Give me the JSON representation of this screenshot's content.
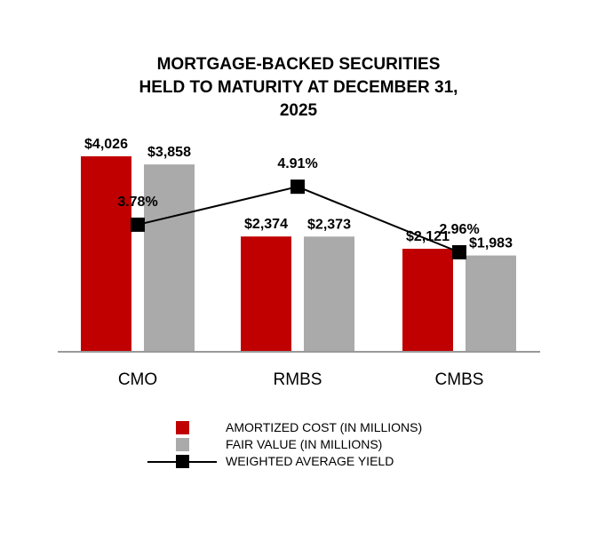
{
  "chart_data": {
    "type": "bar",
    "title_lines": [
      "MORTGAGE-BACKED SECURITIES",
      "HELD TO MATURITY AT DECEMBER 31,",
      "2025"
    ],
    "categories": [
      "CMO",
      "RMBS",
      "CMBS"
    ],
    "ylim": [
      0,
      4500
    ],
    "series": [
      {
        "name": "AMORTIZED COST (IN MILLIONS)",
        "type": "bar",
        "color": "#c00000",
        "values": [
          4026,
          2374,
          2121
        ],
        "labels": [
          "$4,026",
          "$2,374",
          "$2,121"
        ]
      },
      {
        "name": "FAIR VALUE (IN MILLIONS)",
        "type": "bar",
        "color": "#aaaaaa",
        "values": [
          3858,
          2373,
          1983
        ],
        "labels": [
          "$3,858",
          "$2,373",
          "$1,983"
        ]
      },
      {
        "name": "WEIGHTED AVERAGE YIELD",
        "type": "line",
        "color": "#000000",
        "values": [
          3.78,
          4.91,
          2.96
        ],
        "labels": [
          "3.78%",
          "4.91%",
          "2.96%"
        ],
        "ylim": [
          0,
          6.5
        ]
      }
    ],
    "legend_placement": "bottom",
    "grid": false
  }
}
